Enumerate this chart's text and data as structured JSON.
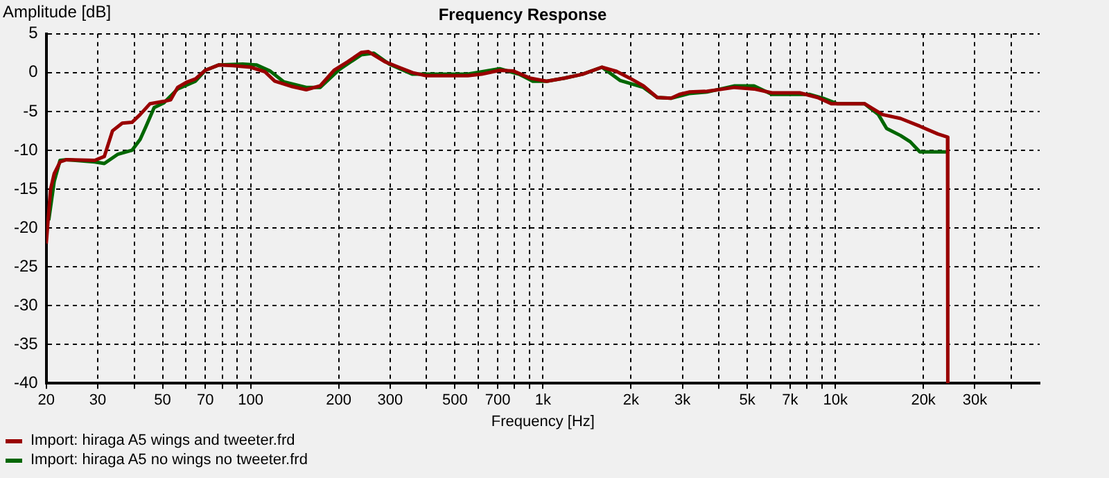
{
  "chart_data": {
    "type": "line",
    "title": "Frequency Response",
    "xlabel": "Frequency [Hz]",
    "ylabel": "Amplitude [dB]",
    "log": "x",
    "grid": true,
    "legend": "bottom left",
    "xlim": [
      20,
      50000
    ],
    "ylim": [
      -40,
      5
    ],
    "yticks": [
      5,
      0,
      -5,
      -10,
      -15,
      -20,
      -25,
      -30,
      -35,
      -40
    ],
    "xticks": [
      20,
      30,
      {
        "value": 40,
        "label": null
      },
      50,
      {
        "value": 60,
        "label": null
      },
      70,
      {
        "value": 80,
        "label": null
      },
      {
        "value": 90,
        "label": null
      },
      100,
      200,
      300,
      {
        "value": 400,
        "label": null
      },
      500,
      {
        "value": 600,
        "label": null
      },
      700,
      {
        "value": 800,
        "label": null
      },
      {
        "value": 900,
        "label": null
      },
      {
        "value": 1000,
        "label": "1k"
      },
      {
        "value": 2000,
        "label": "2k"
      },
      {
        "value": 3000,
        "label": "3k"
      },
      {
        "value": 4000,
        "label": null
      },
      {
        "value": 5000,
        "label": "5k"
      },
      {
        "value": 6000,
        "label": null
      },
      {
        "value": 7000,
        "label": "7k"
      },
      {
        "value": 8000,
        "label": null
      },
      {
        "value": 9000,
        "label": null
      },
      {
        "value": 10000,
        "label": "10k"
      },
      {
        "value": 20000,
        "label": "20k"
      },
      {
        "value": 30000,
        "label": "30k"
      },
      {
        "value": 40000,
        "label": null
      }
    ],
    "series": [
      {
        "name": "Import: hiraga A5 wings and tweeter.frd",
        "color": "#990000",
        "x": [
          20,
          20.7,
          21.3,
          22.3,
          23.5,
          29.3,
          31.6,
          32.6,
          33.7,
          36.4,
          39.3,
          41.9,
          45.3,
          50.5,
          53.3,
          56.3,
          60.7,
          64.8,
          70,
          78,
          87,
          100,
          112,
          121,
          139,
          155,
          173,
          193,
          215,
          239,
          253,
          288,
          321,
          358,
          399,
          553,
          617,
          711,
          793,
          903,
          1030,
          1186,
          1366,
          1591,
          1775,
          1979,
          2206,
          2460,
          2743,
          2929,
          3160,
          3640,
          4525,
          5271,
          6072,
          7549,
          8696,
          9692,
          12590,
          14500,
          16710,
          19460,
          22420,
          24200,
          24250
        ],
        "values": [
          -22,
          -15,
          -13,
          -11.5,
          -11.2,
          -11.3,
          -10.8,
          -9.2,
          -7.5,
          -6.5,
          -6.4,
          -5.4,
          -4,
          -3.7,
          -3.5,
          -1.9,
          -1.2,
          -0.8,
          0.3,
          1,
          0.9,
          0.7,
          0.1,
          -1.1,
          -1.8,
          -2.2,
          -1.7,
          0.3,
          1.4,
          2.6,
          2.7,
          1.4,
          0.7,
          0,
          -0.4,
          -0.4,
          -0.2,
          0.3,
          0.2,
          -0.7,
          -1.1,
          -0.7,
          -0.2,
          0.7,
          0.2,
          -0.7,
          -1.7,
          -3.2,
          -3.3,
          -2.8,
          -2.5,
          -2.4,
          -1.9,
          -2.1,
          -2.6,
          -2.6,
          -3.2,
          -4,
          -4,
          -5.4,
          -5.9,
          -6.9,
          -7.9,
          -8.3,
          -40
        ]
      },
      {
        "name": "Import: hiraga A5 no wings no tweeter.frd",
        "color": "#006600",
        "x": [
          20.4,
          21.3,
          22.3,
          23.5,
          29.3,
          31.6,
          35.2,
          39.3,
          41.9,
          43.8,
          46.8,
          50.5,
          56.3,
          64.8,
          70,
          78,
          93.9,
          104.6,
          116.7,
          130,
          155,
          173,
          201,
          239,
          264,
          298,
          358,
          553,
          711,
          828,
          923,
          1030,
          1186,
          1366,
          1591,
          1834,
          2206,
          2460,
          2743,
          3160,
          3640,
          4525,
          5271,
          6072,
          8146,
          9083,
          10127,
          12590,
          14036,
          14980,
          16710,
          18040,
          19460,
          22420,
          24200
        ],
        "values": [
          -19,
          -14,
          -11.3,
          -11.2,
          -11.5,
          -11.7,
          -10.5,
          -10,
          -8.6,
          -7,
          -4.5,
          -3.9,
          -2.1,
          -1.1,
          0.3,
          1,
          1.1,
          1,
          0.2,
          -1.2,
          -1.9,
          -1.9,
          0.4,
          2.3,
          2.5,
          1.1,
          -0.2,
          -0.2,
          0.5,
          -0.2,
          -1.1,
          -1.1,
          -0.7,
          -0.2,
          0.7,
          -1,
          -1.9,
          -3.2,
          -3.3,
          -2.7,
          -2.5,
          -1.7,
          -1.7,
          -2.8,
          -2.8,
          -3.3,
          -4,
          -4,
          -5.4,
          -7.2,
          -8.1,
          -8.9,
          -10.2,
          -10.2,
          -10.2
        ]
      }
    ]
  }
}
